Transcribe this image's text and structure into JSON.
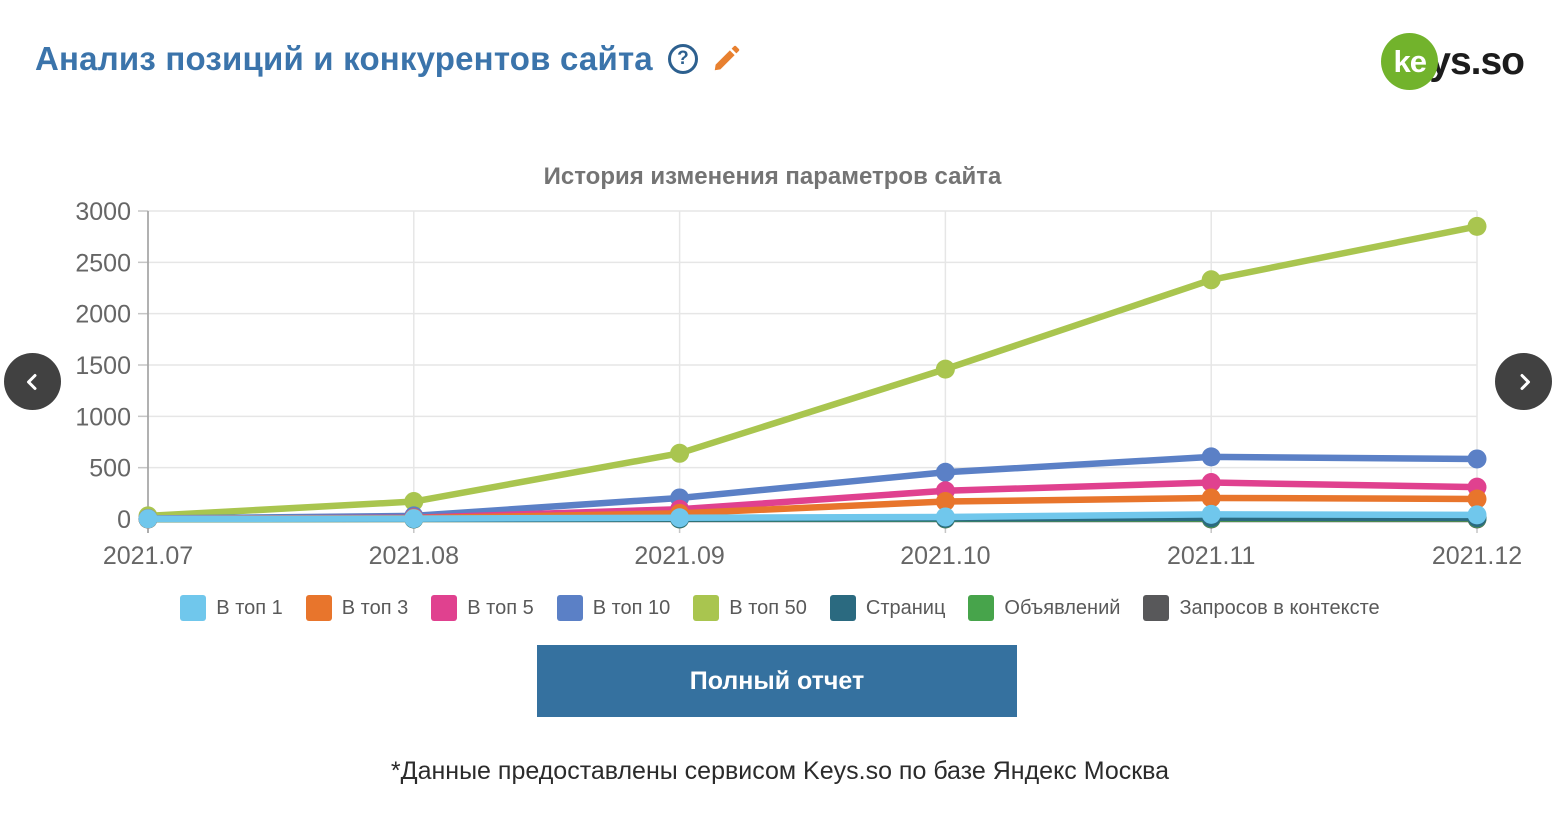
{
  "header": {
    "title": "Анализ позиций и конкурентов сайта",
    "logo": {
      "circle_text": "ke",
      "rest_text": "ys.so"
    }
  },
  "icons": {
    "help_glyph": "?",
    "edit_icon": "pencil",
    "prev_icon": "chevron-left",
    "next_icon": "chevron-right"
  },
  "colors": {
    "title_blue": "#3b74ab",
    "button_blue": "#35719f",
    "logo_green": "#72b32c",
    "pencil_orange": "#e8802f",
    "help_blue": "#2d608f",
    "axis_text": "#666666",
    "gridline": "#e6e6e6"
  },
  "chart_data": {
    "type": "line",
    "title": "История изменения параметров сайта",
    "x": [
      "2021.07",
      "2021.08",
      "2021.09",
      "2021.10",
      "2021.11",
      "2021.12"
    ],
    "ylim": [
      0,
      3000
    ],
    "yticks": [
      0,
      500,
      1000,
      1500,
      2000,
      2500,
      3000
    ],
    "grid": true,
    "legend_position": "bottom",
    "series": [
      {
        "name": "В топ 1",
        "color": "#70c7ec",
        "values": [
          2,
          4,
          12,
          20,
          45,
          40
        ]
      },
      {
        "name": "В топ 3",
        "color": "#e8752c",
        "values": [
          2,
          8,
          55,
          170,
          205,
          195
        ]
      },
      {
        "name": "В топ 5",
        "color": "#e0418f",
        "values": [
          2,
          12,
          95,
          275,
          355,
          310
        ]
      },
      {
        "name": "В топ 10",
        "color": "#5b80c6",
        "values": [
          5,
          30,
          205,
          455,
          605,
          585
        ]
      },
      {
        "name": "В топ 50",
        "color": "#a9c54f",
        "values": [
          30,
          170,
          640,
          1460,
          2330,
          2850
        ]
      },
      {
        "name": "Страниц",
        "color": "#2b6a80",
        "values": [
          1,
          2,
          4,
          6,
          12,
          12
        ]
      },
      {
        "name": "Объявлений",
        "color": "#47a44b",
        "values": [
          0,
          1,
          2,
          3,
          5,
          6
        ]
      },
      {
        "name": "Запросов в контексте",
        "color": "#58585a",
        "values": [
          0,
          0,
          0,
          0,
          0,
          0
        ]
      }
    ]
  },
  "actions": {
    "report_button": "Полный отчет"
  },
  "footer": {
    "note": "*Данные предоставлены сервисом Keys.so по базе Яндекс Москва"
  }
}
